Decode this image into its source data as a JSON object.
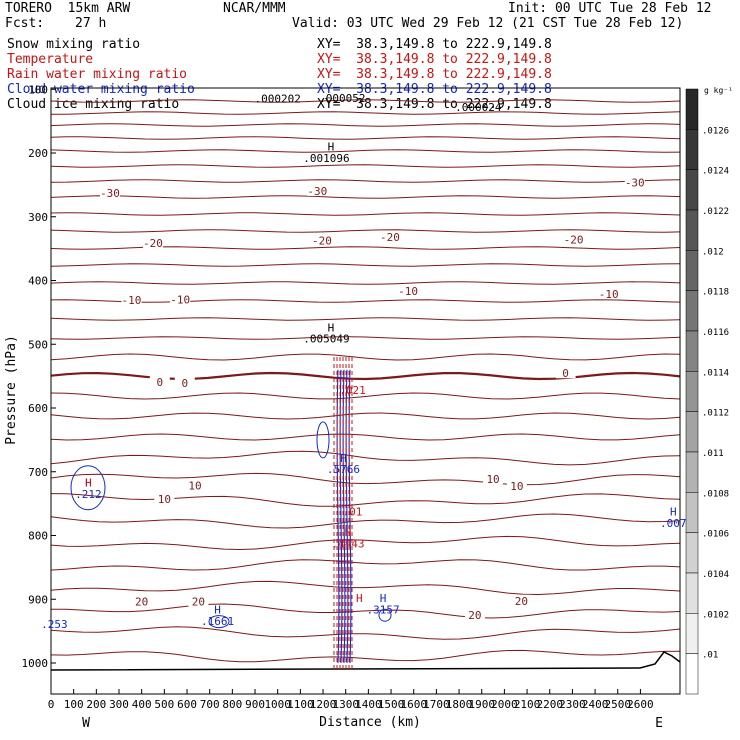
{
  "header": {
    "model": "TORERO  15km ARW",
    "center": "NCAR/MMM",
    "init": "Init: 00 UTC Tue 28 Feb 12",
    "fcst_label": "Fcst:",
    "fcst_value": "27 h",
    "valid": "Valid: 03 UTC Wed 29 Feb 12 (21 CST Tue 28 Feb 12)"
  },
  "fields": [
    {
      "name": "Snow mixing ratio",
      "xsec": "XY=  38.3,149.8 to 222.9,149.8",
      "color": "#000000"
    },
    {
      "name": "Temperature",
      "xsec": "XY=  38.3,149.8 to 222.9,149.8",
      "color": "#c81414"
    },
    {
      "name": "Rain water mixing ratio",
      "xsec": "XY=  38.3,149.8 to 222.9,149.8",
      "color": "#c81414"
    },
    {
      "name": "Cloud water mixing ratio",
      "xsec": "XY=  38.3,149.8 to 222.9,149.8",
      "color": "#1428c8"
    },
    {
      "name": "Cloud ice mixing ratio",
      "xsec": "XY=  38.3,149.8 to 222.9,149.8",
      "color": "#000000"
    }
  ],
  "chart_data": {
    "type": "cross-section contour",
    "xlabel": "Distance (km)",
    "ylabel": "Pressure (hPa)",
    "x_ticks": [
      0,
      100,
      200,
      300,
      400,
      500,
      600,
      700,
      800,
      900,
      1000,
      1100,
      1200,
      1300,
      1400,
      1500,
      1600,
      1700,
      1800,
      1900,
      2000,
      2100,
      2200,
      2300,
      2400,
      2500,
      2600
    ],
    "y_ticks": [
      100,
      200,
      300,
      400,
      500,
      600,
      700,
      800,
      900,
      1000
    ],
    "xlim": [
      0,
      2780
    ],
    "ylim": [
      1050,
      80
    ],
    "x_end_labels": {
      "left": "W",
      "right": "E"
    },
    "temperature_labels": [
      {
        "text": "-30",
        "x": 260,
        "p": 264
      },
      {
        "text": "-30",
        "x": 1175,
        "p": 261
      },
      {
        "text": "-30",
        "x": 2575,
        "p": 248
      },
      {
        "text": "-20",
        "x": 450,
        "p": 343
      },
      {
        "text": "-20",
        "x": 1195,
        "p": 339
      },
      {
        "text": "-20",
        "x": 1495,
        "p": 333
      },
      {
        "text": "-20",
        "x": 2305,
        "p": 337
      },
      {
        "text": "-10",
        "x": 355,
        "p": 432
      },
      {
        "text": "-10",
        "x": 570,
        "p": 431
      },
      {
        "text": "-10",
        "x": 1575,
        "p": 418
      },
      {
        "text": "-10",
        "x": 2460,
        "p": 423
      },
      {
        "text": "0",
        "x": 480,
        "p": 561
      },
      {
        "text": "0",
        "x": 590,
        "p": 562
      },
      {
        "text": "0",
        "x": 2270,
        "p": 547
      },
      {
        "text": "10",
        "x": 500,
        "p": 744
      },
      {
        "text": "10",
        "x": 635,
        "p": 723
      },
      {
        "text": "10",
        "x": 1950,
        "p": 713
      },
      {
        "text": "10",
        "x": 2055,
        "p": 724
      },
      {
        "text": "20",
        "x": 400,
        "p": 905
      },
      {
        "text": "20",
        "x": 650,
        "p": 905
      },
      {
        "text": "20",
        "x": 1870,
        "p": 926
      },
      {
        "text": "20",
        "x": 2075,
        "p": 904
      }
    ],
    "extrema_labels": [
      {
        "text": "H",
        "x": 1235,
        "p": 196,
        "color": "#000000"
      },
      {
        "text": ".001096",
        "x": 1215,
        "p": 214,
        "color": "#000000"
      },
      {
        "text": ".000202",
        "x": 1000,
        "p": 121,
        "color": "#000000"
      },
      {
        "text": ".000052",
        "x": 1285,
        "p": 120,
        "color": "#000000"
      },
      {
        "text": ".000024",
        "x": 1885,
        "p": 134,
        "color": "#000000"
      },
      {
        "text": "H",
        "x": 1235,
        "p": 480,
        "color": "#000000"
      },
      {
        "text": ".005049",
        "x": 1215,
        "p": 497,
        "color": "#000000"
      },
      {
        "text": "H",
        "x": 165,
        "p": 723,
        "color": "#1428c8"
      },
      {
        "text": ".212",
        "x": 165,
        "p": 741,
        "color": "#1428c8"
      },
      {
        "text": "H",
        "x": 1290,
        "p": 685,
        "color": "#1428c8"
      },
      {
        "text": ".5766",
        "x": 1290,
        "p": 702,
        "color": "#1428c8"
      },
      {
        "text": "H",
        "x": 735,
        "p": 922,
        "color": "#1428c8"
      },
      {
        "text": ".1661",
        "x": 735,
        "p": 940,
        "color": "#1428c8"
      },
      {
        "text": "H",
        "x": 1465,
        "p": 904,
        "color": "#1428c8"
      },
      {
        "text": ".3157",
        "x": 1465,
        "p": 922,
        "color": "#1428c8"
      },
      {
        "text": "H",
        "x": 2745,
        "p": 769,
        "color": "#1428c8"
      },
      {
        "text": ".007",
        "x": 2745,
        "p": 787,
        "color": "#1428c8"
      },
      {
        "text": ".253",
        "x": 15,
        "p": 945,
        "color": "#1428c8"
      },
      {
        "text": "H",
        "x": 1310,
        "p": 801,
        "color": "#c81414"
      },
      {
        "text": ".4443",
        "x": 1310,
        "p": 819,
        "color": "#c81414"
      },
      {
        "text": "H",
        "x": 1360,
        "p": 904,
        "color": "#c81414"
      },
      {
        "text": "H",
        "x": 165,
        "p": 723,
        "color": "#c81414"
      },
      {
        "text": ".021",
        "x": 1330,
        "p": 578,
        "color": "#c81414"
      },
      {
        "text": ".01",
        "x": 1330,
        "p": 769,
        "color": "#c81414"
      }
    ],
    "colorbar": {
      "unit": "g kg⁻¹",
      "labels": [
        ".0126",
        ".0124",
        ".0122",
        ".012",
        ".0118",
        ".0116",
        ".0114",
        ".0112",
        ".011",
        ".0108",
        ".0106",
        ".0104",
        ".0102",
        ".01"
      ]
    },
    "legend_placement": "top-left"
  }
}
